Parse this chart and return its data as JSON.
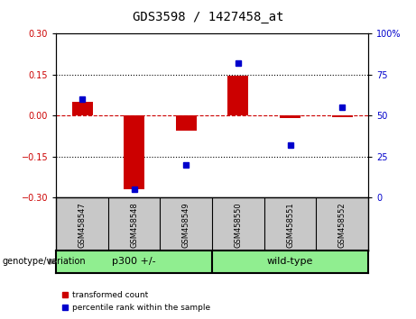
{
  "title": "GDS3598 / 1427458_at",
  "samples": [
    "GSM458547",
    "GSM458548",
    "GSM458549",
    "GSM458550",
    "GSM458551",
    "GSM458552"
  ],
  "red_values": [
    0.05,
    -0.27,
    -0.055,
    0.145,
    -0.01,
    -0.005
  ],
  "blue_values_pct": [
    60,
    5,
    20,
    82,
    32,
    55
  ],
  "ylim_left": [
    -0.3,
    0.3
  ],
  "ylim_right": [
    0,
    100
  ],
  "left_ticks": [
    -0.3,
    -0.15,
    0,
    0.15,
    0.3
  ],
  "right_ticks": [
    0,
    25,
    50,
    75,
    100
  ],
  "hlines": [
    0.15,
    -0.15
  ],
  "red_color": "#CC0000",
  "blue_color": "#0000CC",
  "zero_line_color": "#CC0000",
  "bg_color": "#FFFFFF",
  "bar_width": 0.4,
  "blue_marker_size": 5,
  "legend_red_label": "transformed count",
  "legend_blue_label": "percentile rank within the sample",
  "genotype_label": "genotype/variation",
  "sample_bg": "#C8C8C8",
  "group_color": "#90EE90",
  "tick_label_fontsize": 7,
  "title_fontsize": 10,
  "group1_label": "p300 +/-",
  "group2_label": "wild-type",
  "group1_samples": [
    0,
    1,
    2
  ],
  "group2_samples": [
    3,
    4,
    5
  ]
}
